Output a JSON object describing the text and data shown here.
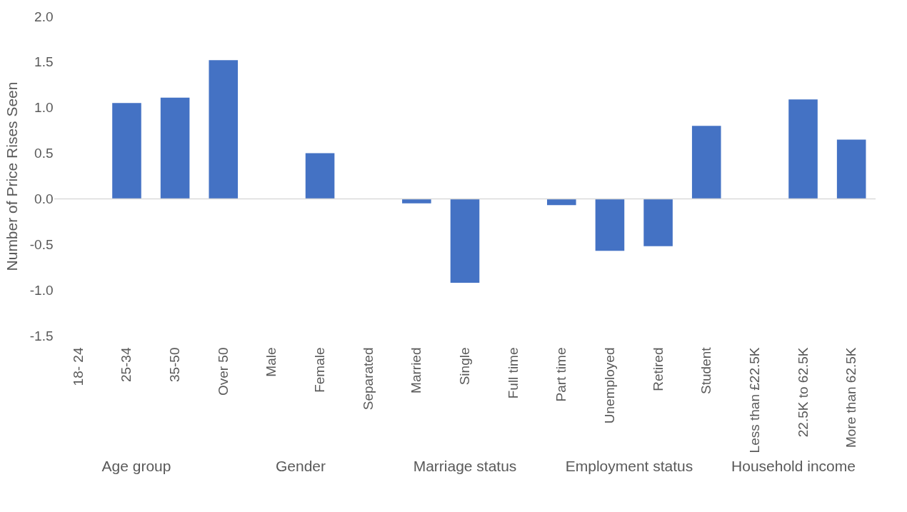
{
  "chart_data": {
    "type": "bar",
    "ylabel": "Number of Price Rises Seen",
    "categories": [
      "18- 24",
      "25-34",
      "35-50",
      "Over 50",
      "Male",
      "Female",
      "Separated",
      "Married",
      "Single",
      "Full time",
      "Part time",
      "Unemployed",
      "Retired",
      "Student",
      "Less than £22.5K",
      "22.5K to 62.5K",
      "More than 62.5K"
    ],
    "values": [
      0,
      1.05,
      1.11,
      1.52,
      0,
      0.5,
      0,
      -0.05,
      -0.92,
      0,
      -0.07,
      -0.57,
      -0.52,
      0.8,
      0,
      1.09,
      0.65
    ],
    "color": "#4472c4",
    "ylim": [
      -1.5,
      2
    ],
    "yticks": [
      {
        "value": -1.5,
        "label": "-1.5"
      },
      {
        "value": -1,
        "label": "-1.0"
      },
      {
        "value": -0.5,
        "label": "-0.5"
      },
      {
        "value": 0,
        "label": "0.0"
      },
      {
        "value": 0.5,
        "label": "0.5"
      },
      {
        "value": 1,
        "label": "1.0"
      },
      {
        "value": 1.5,
        "label": "1.5"
      },
      {
        "value": 2,
        "label": "2.0"
      }
    ],
    "ref_lines": [
      {
        "axis": "y",
        "value": 0,
        "color": "#d9d9d9"
      }
    ],
    "annotations": [
      "Age group",
      "Gender",
      "Marriage status",
      "Employment status",
      "Household income"
    ]
  }
}
